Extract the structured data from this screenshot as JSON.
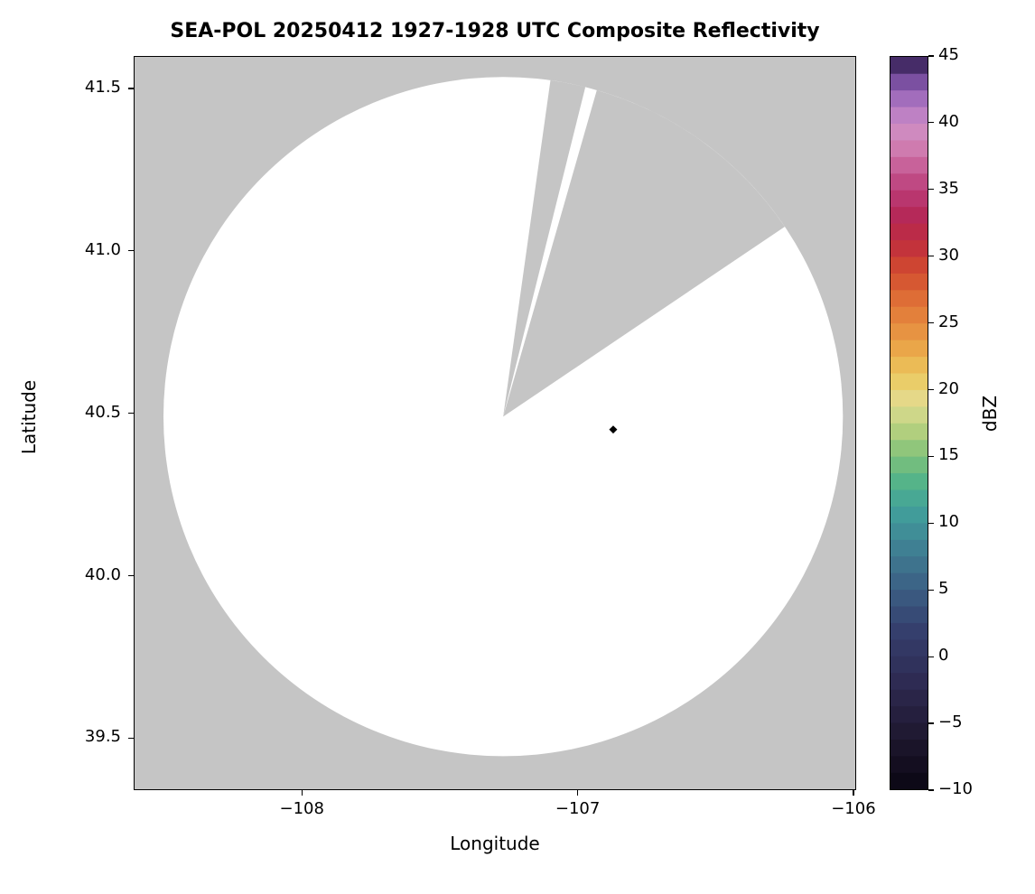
{
  "chart_data": {
    "type": "heatmap",
    "subtype": "radar_ppi_composite_reflectivity",
    "title": "SEA-POL 20250412 1927-1928 UTC Composite Reflectivity",
    "xlabel": "Longitude",
    "ylabel": "Latitude",
    "xlim": [
      -108.61,
      -105.99
    ],
    "ylim": [
      39.34,
      41.6
    ],
    "xticks": [
      -108,
      -107,
      -106
    ],
    "yticks": [
      39.5,
      40.0,
      40.5,
      41.0,
      41.5
    ],
    "grid": false,
    "notes": "White disc = radar coverage area with no reflectivity echoes above threshold; gray = no coverage; two gray blocked/unscanned sectors cut into the disc toward the north and northeast.",
    "colors": {
      "coverage": "#ffffff",
      "no_coverage": "#c5c5c5",
      "text": "#000000",
      "spine": "#000000"
    },
    "radar": {
      "center_lon": -107.27,
      "center_lat": 40.49,
      "radius_lon": 1.235,
      "radius_lat": 1.048,
      "blocked_sectors": [
        {
          "az_start": 8,
          "az_end": 14
        },
        {
          "az_start": 16,
          "az_end": 56
        }
      ]
    },
    "marker": {
      "lon": -106.87,
      "lat": 40.45,
      "shape": "diamond",
      "color": "#000000",
      "size": 9
    },
    "colorbar": {
      "label": "dBZ",
      "min": -10,
      "max": 45,
      "segments": 44,
      "ticks": [
        45,
        40,
        35,
        30,
        25,
        20,
        15,
        10,
        5,
        0,
        -5,
        -10
      ],
      "anchors": [
        {
          "value": -10,
          "color": "#0a0612"
        },
        {
          "value": -6,
          "color": "#1f1830"
        },
        {
          "value": -2,
          "color": "#2e2a52"
        },
        {
          "value": 2,
          "color": "#35406e"
        },
        {
          "value": 5,
          "color": "#3b5e84"
        },
        {
          "value": 8,
          "color": "#3f7f93"
        },
        {
          "value": 11,
          "color": "#41a09b"
        },
        {
          "value": 13,
          "color": "#52b38a"
        },
        {
          "value": 15,
          "color": "#7fc27a"
        },
        {
          "value": 17,
          "color": "#b4d07e"
        },
        {
          "value": 19,
          "color": "#e3dc92"
        },
        {
          "value": 21,
          "color": "#ecc95f"
        },
        {
          "value": 23,
          "color": "#eaa84a"
        },
        {
          "value": 25,
          "color": "#e68a3e"
        },
        {
          "value": 27,
          "color": "#dd6b35"
        },
        {
          "value": 29,
          "color": "#d14a30"
        },
        {
          "value": 31,
          "color": "#c02e3d"
        },
        {
          "value": 33,
          "color": "#b52857"
        },
        {
          "value": 35,
          "color": "#bb3d78"
        },
        {
          "value": 37,
          "color": "#c9649c"
        },
        {
          "value": 39,
          "color": "#d48cbd"
        },
        {
          "value": 41,
          "color": "#b97fc6"
        },
        {
          "value": 42.5,
          "color": "#9260b5"
        },
        {
          "value": 44,
          "color": "#5b3a86"
        },
        {
          "value": 45,
          "color": "#241536"
        }
      ]
    }
  }
}
